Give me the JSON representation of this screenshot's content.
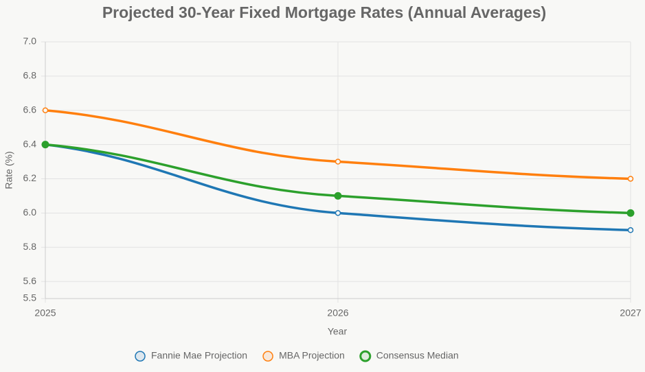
{
  "chart_data": {
    "type": "line",
    "title": "Projected 30-Year Fixed Mortgage Rates (Annual Averages)",
    "x_label": "Year",
    "y_label": "Rate (%)",
    "x": [
      2025,
      2026,
      2027
    ],
    "xlim": [
      2025,
      2027
    ],
    "xticks": [
      2025,
      2026,
      2027
    ],
    "ylim": [
      5.5,
      7.0
    ],
    "yticks": [
      5.5,
      5.6,
      5.8,
      {
        "value": 6.0,
        "label": "6.0"
      },
      6.2,
      6.4,
      6.6,
      6.8,
      {
        "value": 7.0,
        "label": "7.0"
      }
    ],
    "grid": true,
    "legend": "bottom",
    "series": [
      {
        "name": "Fannie Mae Projection",
        "color": "#1f77b4",
        "values": [
          6.4,
          6.0,
          5.9
        ]
      },
      {
        "name": "MBA Projection",
        "color": "#ff7f0e",
        "values": [
          6.6,
          6.3,
          6.2
        ]
      },
      {
        "name": "Consensus Median",
        "color": "#2ca02c",
        "values": [
          6.4,
          6.1,
          6.0
        ]
      }
    ]
  }
}
